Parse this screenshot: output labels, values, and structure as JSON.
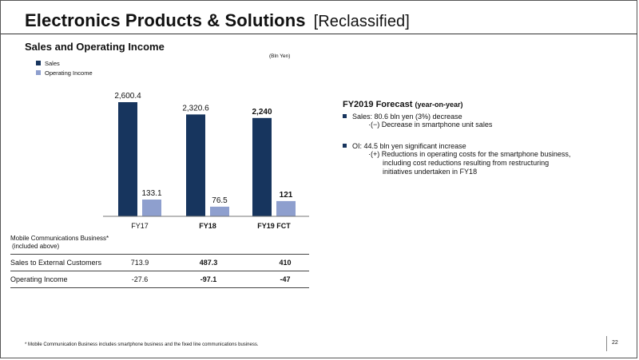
{
  "header": {
    "title": "Electronics Products & Solutions",
    "subtitle": "[Reclassified]"
  },
  "section_title": "Sales and Operating Income",
  "unit": "(Bln Yen)",
  "chart_data": {
    "type": "bar",
    "categories": [
      "FY17",
      "FY18",
      "FY19 FCT"
    ],
    "category_bold": [
      false,
      true,
      true
    ],
    "series": [
      {
        "name": "Sales",
        "values": [
          2600.4,
          2320.6,
          2240
        ],
        "labels": [
          "2,600.4",
          "2,320.6",
          "2,240"
        ],
        "color": "#17355e",
        "label_bold": [
          false,
          false,
          true
        ]
      },
      {
        "name": "Operating Income",
        "values": [
          133.1,
          76.5,
          121
        ],
        "labels": [
          "133.1",
          "76.5",
          "121"
        ],
        "color": "#8e9fce",
        "label_bold": [
          false,
          false,
          true
        ]
      }
    ],
    "sales_axis_max": 2600.4,
    "oi_axis_max": 133.1,
    "legend_position": "top-left"
  },
  "table": {
    "heading_line1": "Mobile Communications Business*",
    "heading_line2": "(included above)",
    "rows": [
      {
        "label": "Sales to External Customers",
        "fy17": "713.9",
        "fy18": "487.3",
        "fy19": "410"
      },
      {
        "label": "Operating Income",
        "fy17": "-27.6",
        "fy18": "-97.1",
        "fy19": "-47"
      }
    ]
  },
  "forecast": {
    "title": "FY2019 Forecast",
    "title_suffix": "(year-on-year)",
    "bullets": [
      {
        "text": "Sales: 80.6 bln yen (3%) decrease",
        "subs": [
          "·(−) Decrease in smartphone unit sales"
        ]
      },
      {
        "text": "OI: 44.5 bln yen significant increase",
        "subs": [
          "·(+) Reductions in operating costs for the smartphone business,",
          "including cost reductions resulting from restructuring",
          "initiatives undertaken in FY18"
        ]
      }
    ]
  },
  "footnote": "* Mobile Communication Business includes smartphone business and the fixed line communications business.",
  "page_number": "22"
}
